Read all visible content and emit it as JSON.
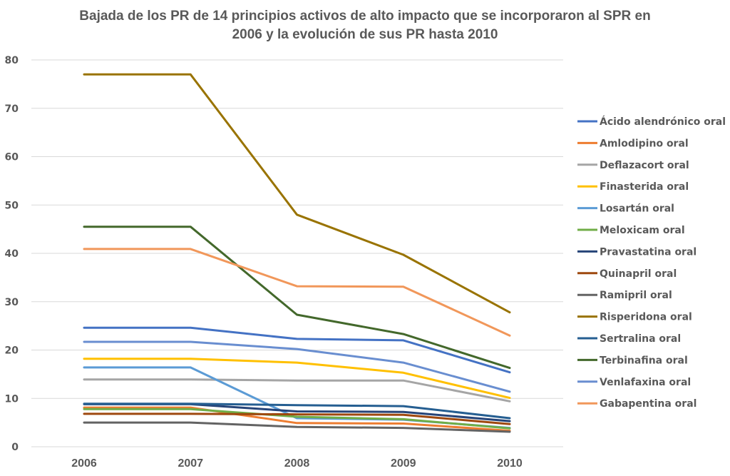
{
  "chart_data": {
    "type": "line",
    "title": "Bajada de los PR de 14 principios activos de alto impacto que se incorporaron al SPR en 2006 y la evolución de sus PR hasta 2010",
    "title_lines": [
      "Bajada de los PR de 14 principios activos de alto impacto que se incorporaron al SPR en",
      "2006 y la evolución de sus PR hasta 2010"
    ],
    "xlabel": "",
    "ylabel": "",
    "categories": [
      "2006",
      "2007",
      "2008",
      "2009",
      "2010"
    ],
    "ylim": [
      0,
      80
    ],
    "yticks": [
      0,
      10,
      20,
      30,
      40,
      50,
      60,
      70,
      80
    ],
    "grid": true,
    "legend_position": "right",
    "series": [
      {
        "name": "Ácido alendrónico oral",
        "color": "#4472C4",
        "values": [
          24.6,
          24.6,
          22.3,
          22.0,
          15.4
        ]
      },
      {
        "name": "Amlodipino oral",
        "color": "#ED7D31",
        "values": [
          8.1,
          8.1,
          4.9,
          4.8,
          3.3
        ]
      },
      {
        "name": "Deflazacort oral",
        "color": "#A5A5A5",
        "values": [
          13.9,
          13.9,
          13.7,
          13.7,
          9.4
        ]
      },
      {
        "name": "Finasterida oral",
        "color": "#FFC000",
        "values": [
          18.2,
          18.2,
          17.4,
          15.3,
          10.1
        ]
      },
      {
        "name": "Losartán oral",
        "color": "#5B9BD5",
        "values": [
          16.4,
          16.4,
          5.9,
          5.6,
          3.9
        ]
      },
      {
        "name": "Meloxicam oral",
        "color": "#70AD47",
        "values": [
          7.8,
          7.8,
          6.2,
          5.7,
          3.8
        ]
      },
      {
        "name": "Pravastatina oral",
        "color": "#264478",
        "values": [
          8.8,
          8.8,
          7.3,
          7.2,
          5.3
        ]
      },
      {
        "name": "Quinapril oral",
        "color": "#9E480E",
        "values": [
          6.8,
          6.8,
          6.7,
          6.6,
          4.7
        ]
      },
      {
        "name": "Ramipril oral",
        "color": "#636363",
        "values": [
          5.0,
          5.0,
          4.1,
          3.9,
          3.1
        ]
      },
      {
        "name": "Risperidona oral",
        "color": "#997300",
        "values": [
          77.0,
          77.0,
          48.0,
          39.7,
          27.8
        ]
      },
      {
        "name": "Sertralina oral",
        "color": "#255E91",
        "values": [
          8.9,
          8.9,
          8.6,
          8.4,
          5.9
        ]
      },
      {
        "name": "Terbinafina oral",
        "color": "#43682B",
        "values": [
          45.5,
          45.5,
          27.3,
          23.3,
          16.3
        ]
      },
      {
        "name": "Venlafaxina oral",
        "color": "#698ED0",
        "values": [
          21.7,
          21.7,
          20.2,
          17.4,
          11.4
        ]
      },
      {
        "name": "Gabapentina oral",
        "color": "#F1975A",
        "values": [
          40.9,
          40.9,
          33.2,
          33.1,
          23.0
        ]
      }
    ]
  }
}
